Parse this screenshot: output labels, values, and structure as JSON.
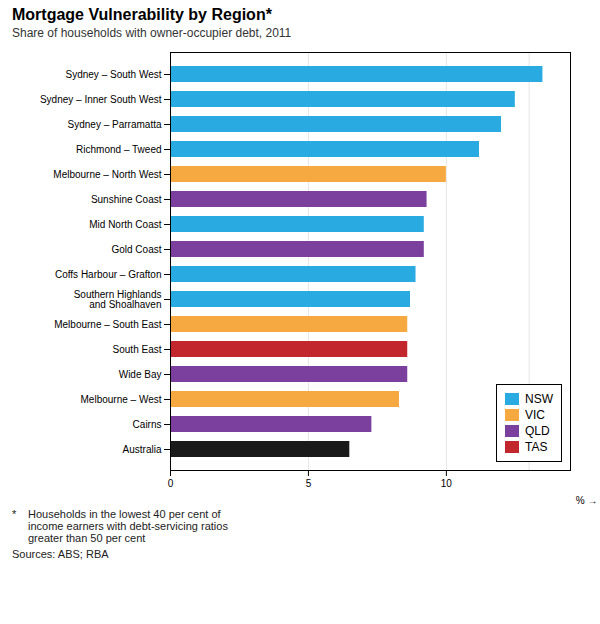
{
  "chart_data": {
    "type": "bar",
    "orientation": "horizontal",
    "title": "Mortgage Vulnerability by Region*",
    "subtitle": "Share of households with owner-occupier debt, 2011",
    "categories": [
      "Sydney – South West",
      "Sydney – Inner South West",
      "Sydney – Parramatta",
      "Richmond – Tweed",
      "Melbourne – North West",
      "Sunshine Coast",
      "Mid North Coast",
      "Gold Coast",
      "Coffs Harbour – Grafton",
      "Southern Highlands\nand Shoalhaven",
      "Melbourne – South East",
      "South East",
      "Wide Bay",
      "Melbourne – West",
      "Cairns",
      "Australia"
    ],
    "series": [
      {
        "name": "NSW",
        "color": "#29ABE2",
        "values": [
          13.5,
          12.5,
          12.0,
          11.2,
          null,
          null,
          9.2,
          null,
          8.9,
          8.7,
          null,
          null,
          null,
          null,
          null,
          null
        ]
      },
      {
        "name": "VIC",
        "color": "#F7A941",
        "values": [
          null,
          null,
          null,
          null,
          10.0,
          null,
          null,
          null,
          null,
          null,
          8.6,
          null,
          null,
          8.3,
          null,
          null
        ]
      },
      {
        "name": "QLD",
        "color": "#7B3F9E",
        "values": [
          null,
          null,
          null,
          null,
          null,
          9.3,
          null,
          9.2,
          null,
          null,
          null,
          null,
          8.6,
          null,
          7.3,
          null
        ]
      },
      {
        "name": "TAS",
        "color": "#C1272D",
        "values": [
          null,
          null,
          null,
          null,
          null,
          null,
          null,
          null,
          null,
          null,
          null,
          8.6,
          null,
          null,
          null,
          null
        ]
      },
      {
        "color": "#1A1A1A",
        "values": [
          null,
          null,
          null,
          null,
          null,
          null,
          null,
          null,
          null,
          null,
          null,
          null,
          null,
          null,
          null,
          6.5
        ]
      }
    ],
    "xlabel": "%",
    "xlim": [
      0,
      14.5
    ],
    "xticks": [
      0,
      5,
      10
    ],
    "vlines": [
      13
    ],
    "grid": true,
    "legend": "lower right",
    "footnote_marker": "*",
    "footnote": "Households in the lowest 40 per cent of\nincome earners with debt-servicing ratios\ngreater than 50 per cent",
    "source": "Sources: ABS; RBA"
  }
}
